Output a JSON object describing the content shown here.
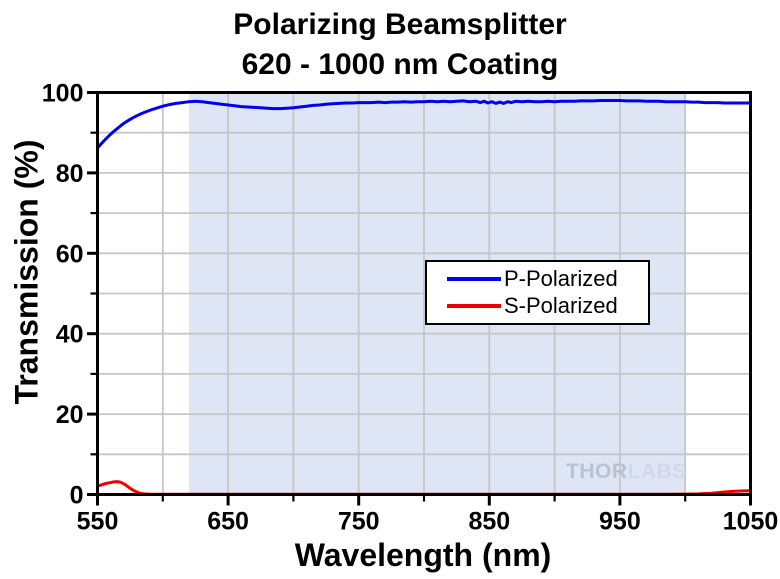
{
  "chart": {
    "title_line1": "Polarizing Beamsplitter",
    "title_line2": "620 - 1000 nm Coating",
    "xlabel": "Wavelength (nm)",
    "ylabel": "Transmission (%)",
    "watermark_part1": "THOR",
    "watermark_part2": "LABS",
    "legend": [
      {
        "label": "P-Polarized",
        "color": "#0000ee"
      },
      {
        "label": "S-Polarized",
        "color": "#ee0000"
      }
    ]
  },
  "chart_data": {
    "type": "line",
    "title": "Polarizing Beamsplitter 620 - 1000 nm Coating",
    "xlabel": "Wavelength (nm)",
    "ylabel": "Transmission (%)",
    "xlim": [
      550,
      1050
    ],
    "ylim": [
      0,
      100
    ],
    "x_major_ticks": [
      550,
      650,
      750,
      850,
      950,
      1050
    ],
    "x_minor_ticks": [
      600,
      700,
      800,
      900,
      1000
    ],
    "y_major_ticks": [
      0,
      20,
      40,
      60,
      80,
      100
    ],
    "y_minor_ticks": [
      10,
      30,
      50,
      70,
      90
    ],
    "grid": true,
    "grid_color": "#c6c6c6",
    "axis_color": "#000000",
    "background_color": "#ffffff",
    "legend_position": "center-right",
    "shaded_band": {
      "x_start": 620,
      "x_end": 1000,
      "color": "#dee6f5",
      "meaning": "620 - 1000 nm coating range"
    },
    "series": [
      {
        "name": "P-Polarized",
        "color": "#0000ee",
        "points": [
          [
            550,
            86.2
          ],
          [
            553,
            87.3
          ],
          [
            556,
            88.3
          ],
          [
            559,
            89.3
          ],
          [
            562,
            90.2
          ],
          [
            565,
            91.0
          ],
          [
            568,
            91.8
          ],
          [
            571,
            92.5
          ],
          [
            574,
            93.1
          ],
          [
            577,
            93.7
          ],
          [
            580,
            94.2
          ],
          [
            584,
            94.8
          ],
          [
            588,
            95.3
          ],
          [
            592,
            95.8
          ],
          [
            596,
            96.2
          ],
          [
            600,
            96.6
          ],
          [
            605,
            97.0
          ],
          [
            610,
            97.3
          ],
          [
            615,
            97.5
          ],
          [
            620,
            97.7
          ],
          [
            625,
            97.8
          ],
          [
            630,
            97.7
          ],
          [
            635,
            97.5
          ],
          [
            640,
            97.3
          ],
          [
            645,
            97.1
          ],
          [
            650,
            96.9
          ],
          [
            655,
            96.7
          ],
          [
            660,
            96.5
          ],
          [
            665,
            96.4
          ],
          [
            670,
            96.3
          ],
          [
            675,
            96.2
          ],
          [
            680,
            96.1
          ],
          [
            685,
            96.0
          ],
          [
            690,
            96.0
          ],
          [
            695,
            96.1
          ],
          [
            700,
            96.2
          ],
          [
            705,
            96.4
          ],
          [
            710,
            96.6
          ],
          [
            715,
            96.8
          ],
          [
            720,
            96.9
          ],
          [
            725,
            97.1
          ],
          [
            730,
            97.2
          ],
          [
            735,
            97.3
          ],
          [
            740,
            97.4
          ],
          [
            745,
            97.4
          ],
          [
            750,
            97.5
          ],
          [
            755,
            97.5
          ],
          [
            760,
            97.5
          ],
          [
            765,
            97.6
          ],
          [
            770,
            97.5
          ],
          [
            775,
            97.6
          ],
          [
            780,
            97.6
          ],
          [
            785,
            97.7
          ],
          [
            790,
            97.6
          ],
          [
            795,
            97.7
          ],
          [
            800,
            97.7
          ],
          [
            805,
            97.8
          ],
          [
            810,
            97.7
          ],
          [
            815,
            97.8
          ],
          [
            820,
            97.7
          ],
          [
            825,
            97.8
          ],
          [
            830,
            97.9
          ],
          [
            835,
            97.7
          ],
          [
            840,
            97.8
          ],
          [
            843,
            97.5
          ],
          [
            846,
            97.8
          ],
          [
            849,
            97.4
          ],
          [
            852,
            97.7
          ],
          [
            855,
            97.3
          ],
          [
            858,
            97.6
          ],
          [
            861,
            97.3
          ],
          [
            864,
            97.7
          ],
          [
            867,
            97.5
          ],
          [
            870,
            97.8
          ],
          [
            875,
            97.7
          ],
          [
            880,
            97.8
          ],
          [
            885,
            97.7
          ],
          [
            890,
            97.7
          ],
          [
            895,
            97.8
          ],
          [
            900,
            97.7
          ],
          [
            905,
            97.8
          ],
          [
            910,
            97.8
          ],
          [
            915,
            97.8
          ],
          [
            920,
            97.9
          ],
          [
            925,
            97.9
          ],
          [
            930,
            97.9
          ],
          [
            935,
            98.0
          ],
          [
            940,
            98.0
          ],
          [
            945,
            98.0
          ],
          [
            950,
            98.0
          ],
          [
            955,
            97.9
          ],
          [
            960,
            97.9
          ],
          [
            965,
            97.9
          ],
          [
            970,
            97.8
          ],
          [
            975,
            97.8
          ],
          [
            980,
            97.8
          ],
          [
            985,
            97.7
          ],
          [
            990,
            97.7
          ],
          [
            995,
            97.7
          ],
          [
            1000,
            97.7
          ],
          [
            1005,
            97.6
          ],
          [
            1010,
            97.6
          ],
          [
            1015,
            97.5
          ],
          [
            1020,
            97.5
          ],
          [
            1025,
            97.5
          ],
          [
            1030,
            97.4
          ],
          [
            1035,
            97.4
          ],
          [
            1040,
            97.4
          ],
          [
            1045,
            97.4
          ],
          [
            1050,
            97.4
          ]
        ]
      },
      {
        "name": "S-Polarized",
        "color": "#ee0000",
        "points": [
          [
            550,
            2.1
          ],
          [
            553,
            2.4
          ],
          [
            556,
            2.7
          ],
          [
            559,
            2.9
          ],
          [
            562,
            3.1
          ],
          [
            565,
            3.2
          ],
          [
            568,
            3.0
          ],
          [
            571,
            2.5
          ],
          [
            574,
            1.8
          ],
          [
            577,
            1.1
          ],
          [
            580,
            0.6
          ],
          [
            583,
            0.3
          ],
          [
            586,
            0.15
          ],
          [
            590,
            0.1
          ],
          [
            600,
            0.08
          ],
          [
            620,
            0.07
          ],
          [
            650,
            0.06
          ],
          [
            700,
            0.05
          ],
          [
            750,
            0.05
          ],
          [
            800,
            0.05
          ],
          [
            850,
            0.05
          ],
          [
            900,
            0.06
          ],
          [
            950,
            0.07
          ],
          [
            980,
            0.08
          ],
          [
            1000,
            0.1
          ],
          [
            1010,
            0.15
          ],
          [
            1020,
            0.3
          ],
          [
            1028,
            0.55
          ],
          [
            1035,
            0.75
          ],
          [
            1040,
            0.85
          ],
          [
            1045,
            0.9
          ],
          [
            1050,
            0.95
          ]
        ]
      }
    ]
  }
}
